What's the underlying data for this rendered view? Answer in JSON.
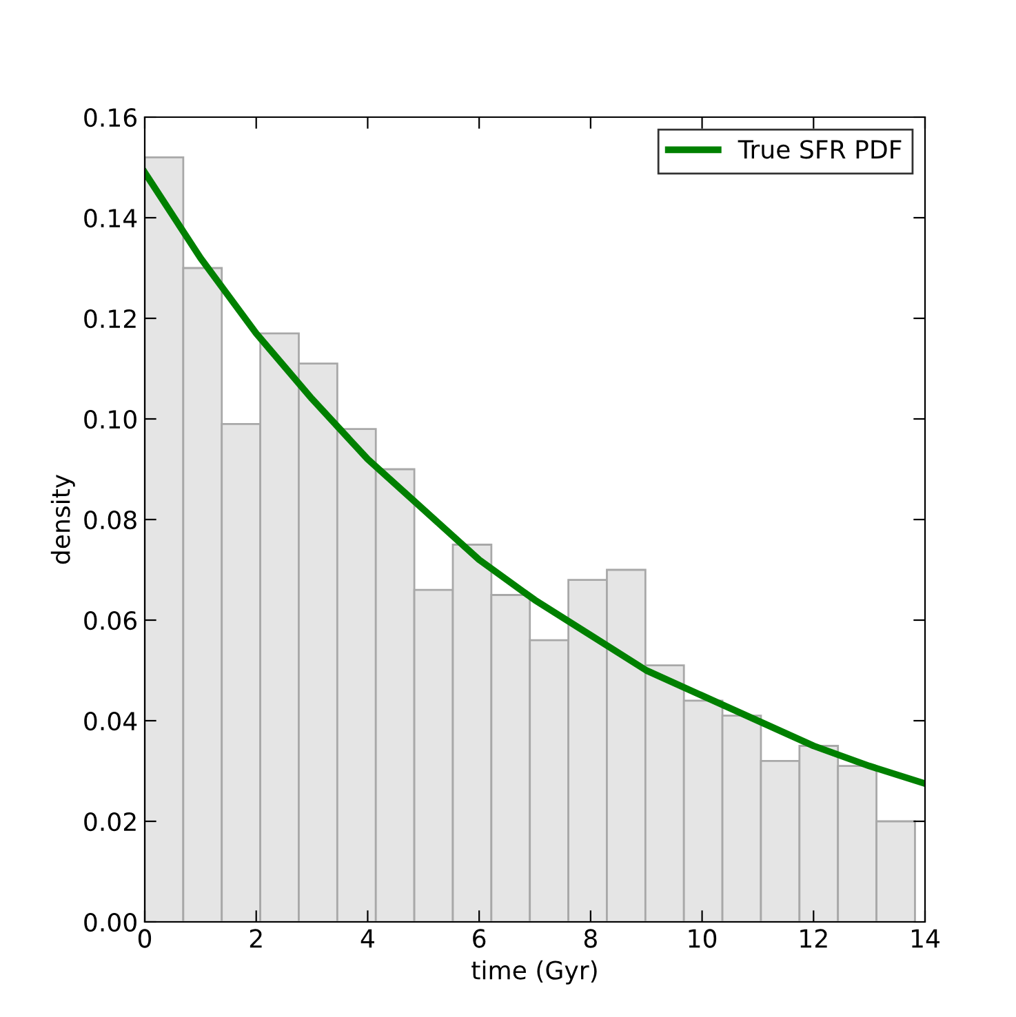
{
  "chart_data": {
    "type": "histogram",
    "xlabel": "time (Gyr)",
    "ylabel": "density",
    "bins": [
      0,
      0.691,
      1.382,
      2.073,
      2.764,
      3.455,
      4.146,
      4.837,
      5.528,
      6.219,
      6.91,
      7.601,
      8.292,
      8.983,
      9.674,
      10.365,
      11.056,
      11.747,
      12.438,
      13.129,
      13.82
    ],
    "values": [
      0.152,
      0.13,
      0.099,
      0.117,
      0.111,
      0.098,
      0.09,
      0.066,
      0.075,
      0.065,
      0.056,
      0.068,
      0.07,
      0.051,
      0.044,
      0.041,
      0.032,
      0.035,
      0.031,
      0.02
    ],
    "color": "#e5e5e5",
    "series": [
      {
        "type": "line",
        "name": "True SFR PDF",
        "color": "#008000",
        "x": [
          0,
          1,
          2,
          3,
          4,
          5,
          6,
          7,
          8,
          9,
          10,
          11,
          12,
          13,
          14
        ],
        "values": [
          0.149,
          0.132,
          0.117,
          0.104,
          0.092,
          0.082,
          0.072,
          0.064,
          0.057,
          0.05,
          0.045,
          0.04,
          0.035,
          0.031,
          0.0275
        ]
      }
    ],
    "xlim": [
      0,
      14
    ],
    "ylim": [
      0,
      0.16
    ],
    "xticks": [
      0,
      2,
      4,
      6,
      8,
      10,
      12,
      14
    ],
    "yticks": [
      {
        "value": 0,
        "label": "0.00"
      },
      {
        "value": 0.02,
        "label": "0.02"
      },
      {
        "value": 0.04,
        "label": "0.04"
      },
      {
        "value": 0.06,
        "label": "0.06"
      },
      {
        "value": 0.08,
        "label": "0.08"
      },
      {
        "value": 0.1,
        "label": "0.10"
      },
      {
        "value": 0.12,
        "label": "0.12"
      },
      {
        "value": 0.14,
        "label": "0.14"
      },
      {
        "value": 0.16,
        "label": "0.16"
      }
    ],
    "grid": false,
    "legend": "top right"
  }
}
